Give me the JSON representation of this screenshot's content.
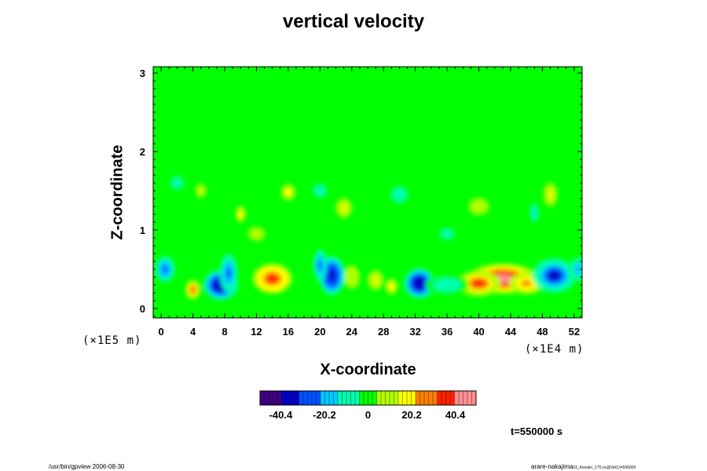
{
  "footer": {
    "left": "/usr/bin/gpview 2006-08-30",
    "right": "arare-nakajima",
    "right_small": "03_Kessler_175.nc@Vel2,t=550000"
  },
  "time_label": "t=550000 s",
  "chart_data": {
    "type": "heatmap",
    "title": "vertical velocity",
    "xlabel": "X-coordinate",
    "ylabel": "Z-coordinate",
    "x_scale_note": "(×1E4 m)",
    "y_scale_note": "(×1E5 m)",
    "xlim": [
      -1,
      53
    ],
    "ylim": [
      -0.12,
      3.08
    ],
    "x_ticks": [
      0,
      4,
      8,
      12,
      16,
      20,
      24,
      28,
      32,
      36,
      40,
      44,
      48,
      52
    ],
    "y_ticks": [
      0,
      1,
      2,
      3
    ],
    "background_value": 0,
    "colorbar": {
      "range": [
        -50,
        50
      ],
      "ticks": [
        -40.4,
        -20.2,
        0,
        20.2,
        40.4
      ],
      "tick_labels": [
        "-40.4",
        "-20.2",
        "0",
        "20.2",
        "40.4"
      ],
      "colors": [
        "#400080",
        "#0000c8",
        "#0050ff",
        "#00c8ff",
        "#00ffb0",
        "#00ff00",
        "#b0ff00",
        "#ffff00",
        "#ff8000",
        "#ff2000",
        "#ff9090"
      ]
    },
    "features": [
      {
        "x": 43,
        "z": 0.38,
        "value": 42,
        "wx": 3.2,
        "wz": 0.14
      },
      {
        "x": 40,
        "z": 0.32,
        "value": 34,
        "wx": 2.0,
        "wz": 0.12
      },
      {
        "x": 46,
        "z": 0.32,
        "value": 25,
        "wx": 1.6,
        "wz": 0.1
      },
      {
        "x": 14,
        "z": 0.38,
        "value": 35,
        "wx": 1.8,
        "wz": 0.14
      },
      {
        "x": 4,
        "z": 0.24,
        "value": 30,
        "wx": 0.7,
        "wz": 0.09
      },
      {
        "x": 29,
        "z": 0.28,
        "value": 22,
        "wx": 0.6,
        "wz": 0.08
      },
      {
        "x": 27,
        "z": 0.36,
        "value": 15,
        "wx": 0.8,
        "wz": 0.1
      },
      {
        "x": 24,
        "z": 0.4,
        "value": 12,
        "wx": 0.8,
        "wz": 0.12
      },
      {
        "x": 7.5,
        "z": 0.3,
        "value": -40,
        "wx": 1.6,
        "wz": 0.14
      },
      {
        "x": 8.5,
        "z": 0.45,
        "value": -25,
        "wx": 0.8,
        "wz": 0.18
      },
      {
        "x": 21.5,
        "z": 0.42,
        "value": -38,
        "wx": 1.2,
        "wz": 0.18
      },
      {
        "x": 20,
        "z": 0.55,
        "value": -25,
        "wx": 0.6,
        "wz": 0.15
      },
      {
        "x": 32.5,
        "z": 0.32,
        "value": -40,
        "wx": 1.4,
        "wz": 0.14
      },
      {
        "x": 49.5,
        "z": 0.42,
        "value": -32,
        "wx": 2.0,
        "wz": 0.16
      },
      {
        "x": 0.5,
        "z": 0.5,
        "value": -25,
        "wx": 0.9,
        "wz": 0.12
      },
      {
        "x": 52.5,
        "z": 0.5,
        "value": -22,
        "wx": 0.8,
        "wz": 0.12
      },
      {
        "x": 36,
        "z": 0.3,
        "value": -8,
        "wx": 2.0,
        "wz": 0.1
      },
      {
        "x": 16,
        "z": 1.48,
        "value": 20,
        "wx": 0.7,
        "wz": 0.08
      },
      {
        "x": 10,
        "z": 1.2,
        "value": 18,
        "wx": 0.5,
        "wz": 0.08
      },
      {
        "x": 23,
        "z": 1.28,
        "value": 14,
        "wx": 0.8,
        "wz": 0.1
      },
      {
        "x": 49,
        "z": 1.45,
        "value": 15,
        "wx": 0.7,
        "wz": 0.12
      },
      {
        "x": 5,
        "z": 1.5,
        "value": 10,
        "wx": 0.6,
        "wz": 0.08
      },
      {
        "x": 47,
        "z": 1.22,
        "value": -15,
        "wx": 0.4,
        "wz": 0.1
      },
      {
        "x": 20,
        "z": 1.5,
        "value": -10,
        "wx": 0.8,
        "wz": 0.08
      },
      {
        "x": 30,
        "z": 1.45,
        "value": -8,
        "wx": 1.0,
        "wz": 0.1
      },
      {
        "x": 2,
        "z": 1.6,
        "value": -6,
        "wx": 1.0,
        "wz": 0.1
      },
      {
        "x": 40,
        "z": 1.3,
        "value": 8,
        "wx": 1.2,
        "wz": 0.1
      },
      {
        "x": 12,
        "z": 0.95,
        "value": 9,
        "wx": 1.0,
        "wz": 0.08
      },
      {
        "x": 36,
        "z": 0.95,
        "value": -7,
        "wx": 1.2,
        "wz": 0.08
      }
    ]
  }
}
